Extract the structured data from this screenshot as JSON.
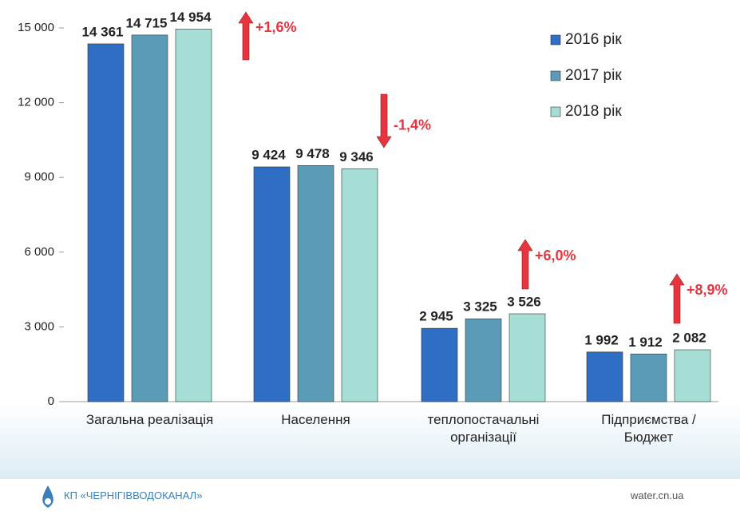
{
  "chart_data": {
    "type": "bar",
    "categories": [
      "Загальна реалізація",
      "Населення",
      "теплопостачальні організації",
      "Підприємства / Бюджет"
    ],
    "series": [
      {
        "name": "2016 рік",
        "color": "#2e6ec4",
        "values": [
          14361,
          9424,
          2945,
          1992
        ],
        "value_labels": [
          "14 361",
          "9 424",
          "2 945",
          "1 992"
        ]
      },
      {
        "name": "2017 рік",
        "color": "#5a9cb8",
        "values": [
          14715,
          9478,
          3325,
          1912
        ],
        "value_labels": [
          "14 715",
          "9 478",
          "3 325",
          "1 912"
        ]
      },
      {
        "name": "2018 рік",
        "color": "#a6ded6",
        "values": [
          14954,
          9346,
          3526,
          2082
        ],
        "value_labels": [
          "14 954",
          "9 346",
          "3 526",
          "2 082"
        ]
      }
    ],
    "ylim": [
      0,
      15000
    ],
    "yticks": [
      0,
      {
        "value": 3000,
        "label": "3 000"
      },
      {
        "value": 6000,
        "label": "6 000"
      },
      {
        "value": 9000,
        "label": "9 000"
      },
      {
        "value": 12000,
        "label": "12 000"
      },
      {
        "value": 15000,
        "label": "15 000"
      }
    ],
    "annotations": [
      {
        "text": "+1,6%",
        "direction": "up"
      },
      {
        "text": "-1,4%",
        "direction": "down"
      },
      {
        "text": "+6,0%",
        "direction": "up"
      },
      {
        "text": "+8,9%",
        "direction": "up"
      }
    ],
    "annotation_color": "#e8343e",
    "legend": "top-right"
  },
  "footer": {
    "organization": "КП «ЧЕРНІГІВВОДОКАНАЛ»",
    "website": "water.cn.ua"
  }
}
